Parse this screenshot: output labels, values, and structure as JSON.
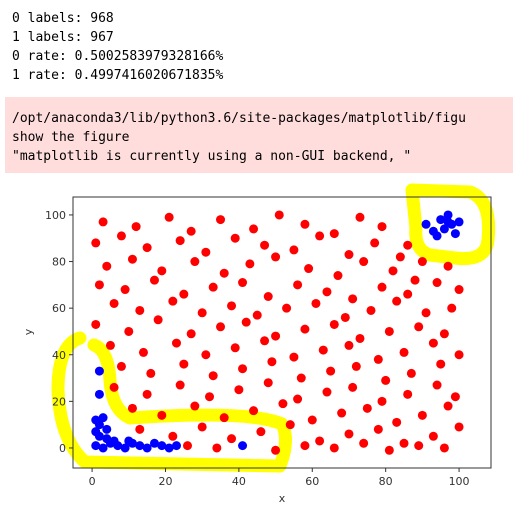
{
  "output_lines": [
    "0 labels: 968",
    "1 labels: 967",
    "0 rate: 0.5002583979328166%",
    "1 rate: 0.4997416020671835%"
  ],
  "warning_lines": [
    "/opt/anaconda3/lib/python3.6/site-packages/matplotlib/figu",
    "show the figure",
    "  \"matplotlib is currently using a non-GUI backend, \""
  ],
  "chart_data": {
    "type": "scatter",
    "xlabel": "x",
    "ylabel": "y",
    "xlim": [
      -5.2,
      108.7
    ],
    "ylim": [
      -8.6,
      107.7
    ],
    "xticks": [
      0,
      20,
      40,
      60,
      80,
      100
    ],
    "yticks": [
      0,
      20,
      40,
      60,
      80,
      100
    ],
    "series": [
      {
        "color": "#ff0000",
        "x": [
          3,
          12,
          21,
          27,
          35,
          44,
          51,
          58,
          66,
          73,
          79,
          86,
          1,
          8,
          15,
          24,
          31,
          39,
          47,
          55,
          62,
          70,
          77,
          84,
          90,
          4,
          11,
          19,
          28,
          36,
          43,
          50,
          59,
          67,
          74,
          82,
          88,
          97,
          2,
          9,
          17,
          25,
          33,
          41,
          48,
          56,
          64,
          71,
          79,
          86,
          94,
          100,
          6,
          13,
          22,
          30,
          38,
          45,
          53,
          61,
          69,
          76,
          83,
          91,
          98,
          1,
          10,
          18,
          27,
          35,
          42,
          50,
          58,
          66,
          73,
          81,
          89,
          96,
          5,
          14,
          23,
          31,
          39,
          47,
          55,
          63,
          70,
          78,
          85,
          93,
          100,
          8,
          16,
          25,
          33,
          41,
          49,
          57,
          65,
          72,
          80,
          87,
          95,
          6,
          15,
          24,
          32,
          40,
          48,
          56,
          64,
          71,
          79,
          86,
          94,
          99,
          11,
          19,
          28,
          36,
          44,
          52,
          60,
          68,
          75,
          83,
          90,
          97,
          13,
          22,
          30,
          38,
          46,
          54,
          62,
          70,
          78,
          85,
          93,
          100,
          26,
          34,
          50,
          58,
          66,
          74,
          81,
          89,
          96
        ],
        "y": [
          97,
          95,
          99,
          93,
          98,
          94,
          100,
          96,
          92,
          99,
          95,
          87,
          88,
          91,
          86,
          89,
          84,
          90,
          87,
          85,
          91,
          83,
          88,
          82,
          80,
          78,
          81,
          76,
          80,
          75,
          79,
          82,
          77,
          74,
          80,
          76,
          72,
          78,
          70,
          68,
          72,
          66,
          69,
          71,
          65,
          70,
          67,
          64,
          69,
          66,
          71,
          68,
          62,
          59,
          63,
          58,
          61,
          57,
          60,
          62,
          56,
          59,
          63,
          58,
          60,
          53,
          50,
          55,
          49,
          52,
          54,
          48,
          51,
          53,
          47,
          50,
          52,
          49,
          44,
          41,
          45,
          40,
          43,
          46,
          39,
          42,
          44,
          38,
          41,
          45,
          40,
          35,
          32,
          36,
          31,
          34,
          37,
          30,
          33,
          35,
          29,
          32,
          36,
          26,
          23,
          27,
          22,
          25,
          28,
          21,
          24,
          26,
          20,
          23,
          27,
          22,
          17,
          14,
          18,
          13,
          16,
          19,
          12,
          15,
          17,
          11,
          14,
          18,
          8,
          5,
          9,
          4,
          7,
          10,
          3,
          6,
          8,
          2,
          5,
          9,
          1,
          0,
          -1,
          1,
          0,
          2,
          -1,
          1,
          0
        ]
      },
      {
        "color": "#0000ff",
        "x": [
          91,
          93,
          95,
          96,
          97,
          98,
          99,
          100,
          94,
          97,
          1,
          2,
          3,
          4,
          1,
          2,
          4,
          1,
          3,
          5,
          7,
          9,
          11,
          13,
          15,
          17,
          19,
          21,
          23,
          6,
          10,
          2,
          2,
          41
        ],
        "y": [
          96,
          93,
          98,
          94,
          100,
          96,
          92,
          97,
          91,
          97,
          12,
          10,
          13,
          8,
          7,
          5,
          4,
          1,
          0,
          2,
          1,
          0,
          2,
          1,
          0,
          2,
          1,
          0,
          1,
          3,
          3,
          33,
          23,
          1
        ]
      }
    ]
  }
}
